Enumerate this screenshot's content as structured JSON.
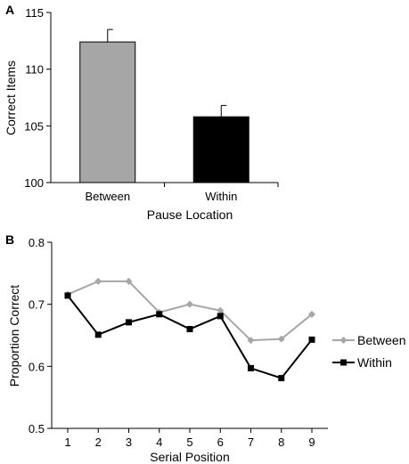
{
  "chart_data": [
    {
      "panel_label": "A",
      "type": "bar",
      "categories": [
        "Between",
        "Within"
      ],
      "values": [
        112.4,
        105.8
      ],
      "errors": [
        1.1,
        1.0
      ],
      "colors": [
        "#a6a6a6",
        "#000000"
      ],
      "xlabel": "Pause Location",
      "ylabel": "Correct Items",
      "ylim": [
        100,
        115
      ],
      "yticks": [
        100,
        105,
        110,
        115
      ],
      "grid": false
    },
    {
      "panel_label": "B",
      "type": "line",
      "x": [
        1,
        2,
        3,
        4,
        5,
        6,
        7,
        8,
        9
      ],
      "series": [
        {
          "name": "Between",
          "values": [
            0.716,
            0.737,
            0.737,
            0.687,
            0.7,
            0.69,
            0.642,
            0.644,
            0.684
          ],
          "color": "#a6a6a6",
          "marker": "diamond"
        },
        {
          "name": "Within",
          "values": [
            0.714,
            0.651,
            0.671,
            0.684,
            0.66,
            0.681,
            0.597,
            0.581,
            0.643
          ],
          "color": "#000000",
          "marker": "square"
        }
      ],
      "xlabel": "Serial Position",
      "ylabel": "Proportion Correct",
      "ylim": [
        0.5,
        0.8
      ],
      "yticks": [
        0.5,
        0.6,
        0.7,
        0.8
      ],
      "xlim": [
        1,
        9
      ],
      "legend_position": "right",
      "grid": false
    }
  ]
}
